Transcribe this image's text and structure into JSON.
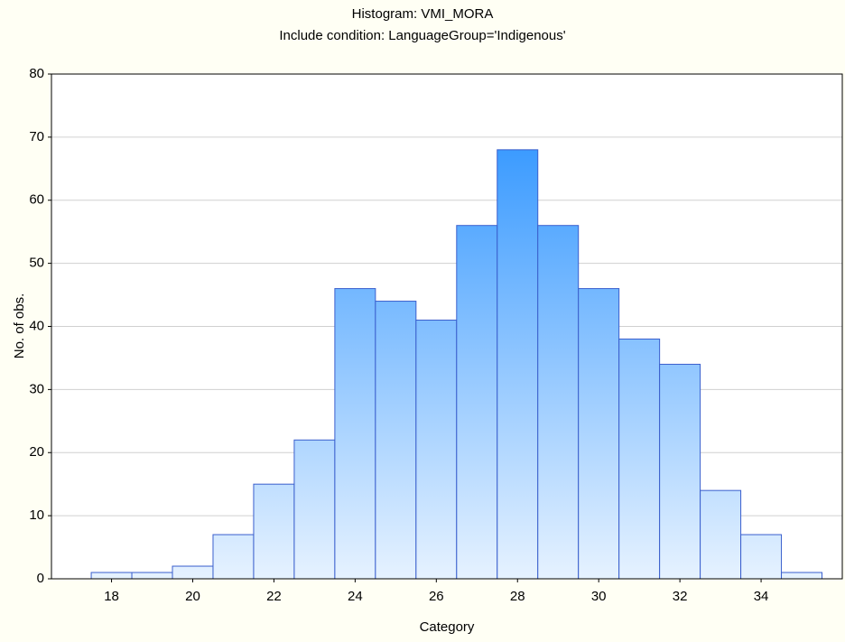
{
  "chart_data": {
    "type": "histogram",
    "title": "Histogram: VMI_MORA",
    "subtitle": "Include condition: LanguageGroup='Indigenous'",
    "x_label": "Category",
    "y_label": "No. of obs.",
    "bins": [
      17.5,
      18.5,
      19.5,
      20.5,
      21.5,
      22.5,
      23.5,
      24.5,
      25.5,
      26.5,
      27.5,
      28.5,
      29.5,
      30.5,
      31.5,
      32.5,
      33.5,
      34.5,
      35.5
    ],
    "values": [
      1,
      1,
      2,
      7,
      15,
      22,
      46,
      44,
      41,
      56,
      68,
      56,
      46,
      38,
      34,
      14,
      7,
      1
    ],
    "color": "#1e8cff",
    "edge_color": "#3a5fcd",
    "xlim": [
      16.52,
      36
    ],
    "xticks": [
      18,
      20,
      22,
      24,
      26,
      28,
      30,
      32,
      34
    ],
    "ylim": [
      0,
      80
    ],
    "yticks": [
      0,
      10,
      20,
      30,
      40,
      50,
      60,
      70,
      80
    ],
    "grid": true
  }
}
